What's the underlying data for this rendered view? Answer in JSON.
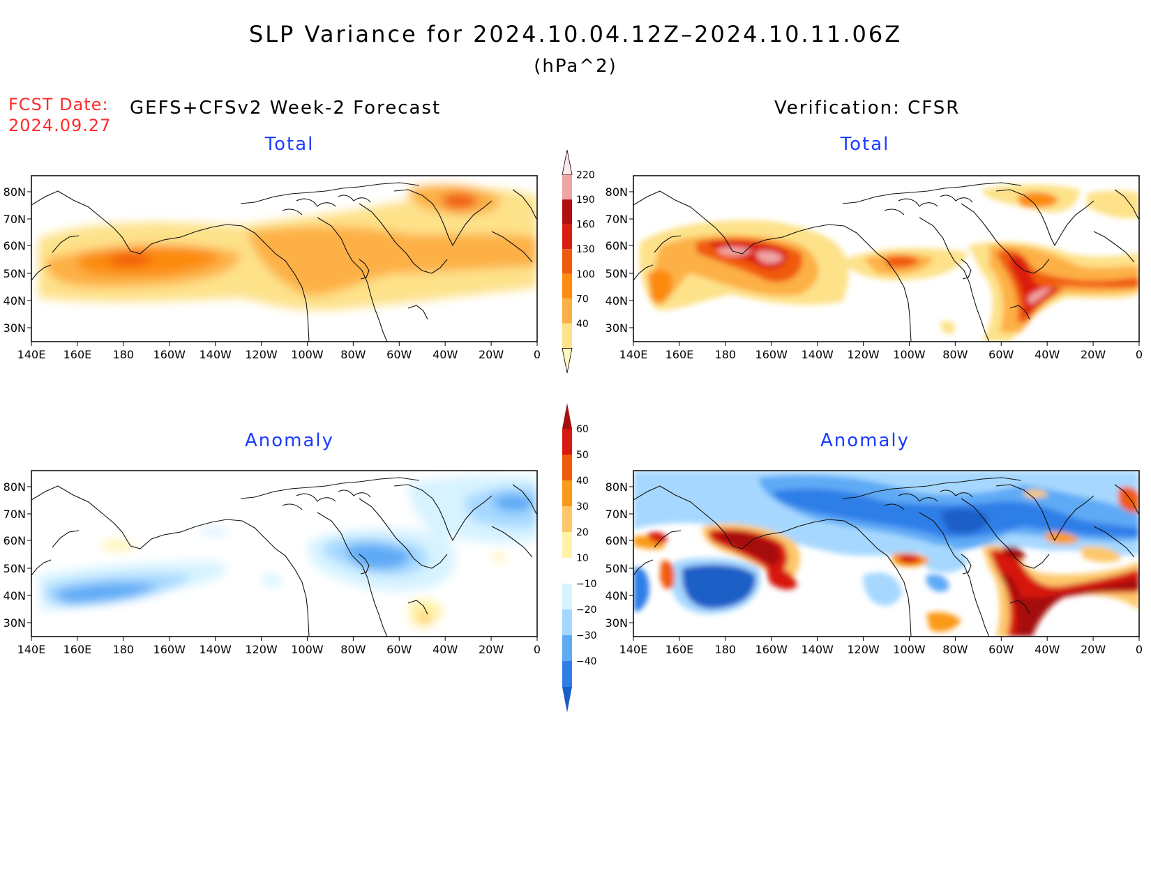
{
  "title": "SLP Variance for 2024.10.04.12Z–2024.10.11.06Z",
  "units": "(hPa^2)",
  "fcst_label": "FCST Date:",
  "fcst_date": "2024.09.27",
  "left_header": "GEFS+CFSv2 Week-2 Forecast",
  "right_header": "Verification: CFSR",
  "panels": {
    "tl": {
      "title": "Total"
    },
    "tr": {
      "title": "Total"
    },
    "bl": {
      "title": "Anomaly"
    },
    "br": {
      "title": "Anomaly"
    }
  },
  "lat_labels": [
    "80N",
    "70N",
    "60N",
    "50N",
    "40N",
    "30N"
  ],
  "lon_labels": [
    "140E",
    "160E",
    "180",
    "160W",
    "140W",
    "120W",
    "100W",
    "80W",
    "60W",
    "40W",
    "20W",
    "0"
  ],
  "total_colorbar": {
    "labels": [
      "40",
      "70",
      "100",
      "130",
      "160",
      "190",
      "220"
    ],
    "colors": [
      "#fff9c0",
      "#fde28a",
      "#fdb045",
      "#fc8b10",
      "#f05a0c",
      "#db1d10",
      "#b01010",
      "#f0a5a5",
      "#ffe6ea"
    ]
  },
  "anomaly_colorbar": {
    "labels": [
      "60",
      "50",
      "40",
      "30",
      "20",
      "10",
      "−10",
      "−20",
      "−30",
      "−40"
    ],
    "colors": [
      "#a50f10",
      "#d7190f",
      "#f15a0c",
      "#fb9a18",
      "#fdc76a",
      "#fff3a8",
      "#ffffff",
      "#d7f3ff",
      "#a6d8ff",
      "#5eaaf5",
      "#2f7ee8",
      "#1a5fc7"
    ]
  }
}
